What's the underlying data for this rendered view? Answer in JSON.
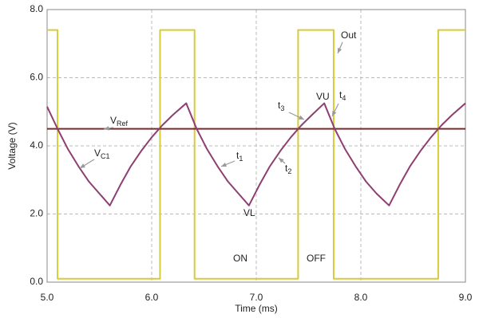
{
  "chart_data": {
    "type": "line",
    "xlabel": "Time (ms)",
    "ylabel": "Voltage (V)",
    "xlim": [
      5,
      9
    ],
    "ylim": [
      0,
      8
    ],
    "xticks": [
      {
        "value": 5,
        "label": "5.0"
      },
      {
        "value": 6,
        "label": "6.0"
      },
      {
        "value": 7,
        "label": "7.0"
      },
      {
        "value": 8,
        "label": "8.0"
      },
      {
        "value": 9,
        "label": "9.0"
      }
    ],
    "yticks": [
      {
        "value": 0,
        "label": "0.0"
      },
      {
        "value": 2,
        "label": "2.0"
      },
      {
        "value": 4,
        "label": "4.0"
      },
      {
        "value": 6,
        "label": "6.0"
      },
      {
        "value": 8,
        "label": "8.0"
      }
    ],
    "grid": true,
    "series": [
      {
        "name": "Out",
        "color": "#d6cc3a",
        "x": [
          5.0,
          5.1,
          5.1,
          6.08,
          6.08,
          6.41,
          6.41,
          7.4,
          7.4,
          7.74,
          7.74,
          8.74,
          8.74,
          9.0
        ],
        "values": [
          7.4,
          7.4,
          0.1,
          0.1,
          7.4,
          7.4,
          0.1,
          0.1,
          7.4,
          7.4,
          0.1,
          0.1,
          7.4,
          7.4
        ]
      },
      {
        "color": "#7a2a2a",
        "x": [
          5.0,
          9.0
        ],
        "values": [
          4.5,
          4.5
        ]
      },
      {
        "color": "#8e3f72",
        "x": [
          5.0,
          5.1,
          5.2,
          5.3,
          5.4,
          5.5,
          5.6,
          5.7,
          5.8,
          5.9,
          6.0,
          6.1,
          6.2,
          6.33,
          6.43,
          6.53,
          6.63,
          6.73,
          6.83,
          6.93,
          7.03,
          7.13,
          7.23,
          7.33,
          7.43,
          7.53,
          7.65,
          7.75,
          7.85,
          7.95,
          8.05,
          8.15,
          8.27,
          8.37,
          8.47,
          8.57,
          8.67,
          8.77,
          8.87,
          9.0
        ],
        "values": [
          5.15,
          4.5,
          3.9,
          3.4,
          2.95,
          2.6,
          2.25,
          2.85,
          3.4,
          3.85,
          4.25,
          4.6,
          4.9,
          5.25,
          4.5,
          3.9,
          3.4,
          2.95,
          2.6,
          2.25,
          2.85,
          3.4,
          3.85,
          4.25,
          4.6,
          4.9,
          5.25,
          4.5,
          3.9,
          3.4,
          2.95,
          2.6,
          2.25,
          2.85,
          3.4,
          3.85,
          4.25,
          4.6,
          4.9,
          5.25
        ]
      }
    ],
    "annotations": [
      {
        "text": "V",
        "sub": "Ref"
      },
      {
        "text": "V",
        "sub": "C1"
      },
      {
        "text": "t",
        "sub": "1"
      },
      {
        "text": "t",
        "sub": "2"
      },
      {
        "text": "t",
        "sub": "3"
      },
      {
        "text": "t",
        "sub": "4"
      },
      {
        "text": "VU"
      },
      {
        "text": "VL"
      },
      {
        "text": "ON"
      },
      {
        "text": "OFF"
      }
    ]
  }
}
